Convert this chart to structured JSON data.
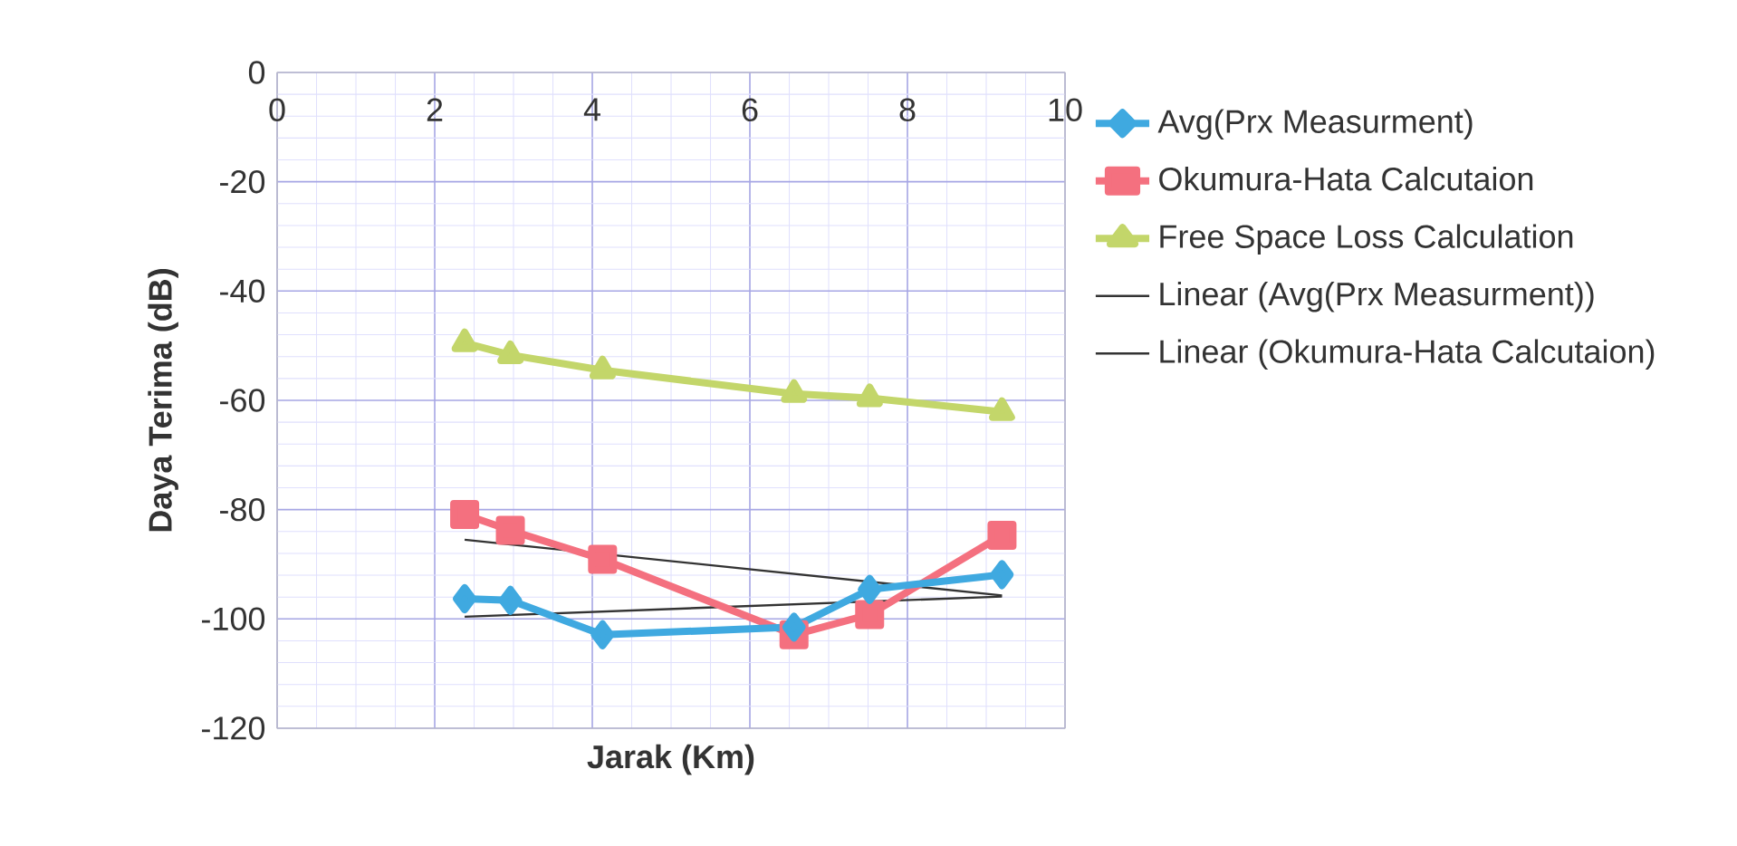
{
  "chart_data": {
    "type": "line",
    "xlabel": "Jarak (Km)",
    "ylabel": "Daya Terima (dB)",
    "xlim": [
      0,
      10
    ],
    "xticks": [
      0,
      2,
      4,
      6,
      8,
      10
    ],
    "ylim": [
      -120,
      0
    ],
    "yticks": [
      -120,
      -100,
      -80,
      -60,
      -40,
      -20,
      0
    ],
    "grid": true,
    "legend": "right",
    "series": [
      {
        "name": "Avg(Prx Measurment)",
        "color": "#3fa9e0",
        "marker": "diamond",
        "x": [
          2.38,
          2.96,
          4.13,
          6.56,
          7.52,
          9.2
        ],
        "values": [
          -96.3,
          -96.6,
          -102.9,
          -101.5,
          -94.6,
          -91.9
        ]
      },
      {
        "name": "Okumura-Hata Calcutaion",
        "color": "#f4707f",
        "marker": "square",
        "x": [
          2.38,
          2.96,
          4.13,
          6.56,
          7.52,
          9.2
        ],
        "values": [
          -80.9,
          -83.8,
          -89.1,
          -102.9,
          -99.2,
          -84.7
        ]
      },
      {
        "name": "Free Space Loss Calculation",
        "color": "#c3d66a",
        "marker": "triangle",
        "x": [
          2.38,
          2.96,
          4.13,
          6.56,
          7.52,
          9.2
        ],
        "values": [
          -49.5,
          -51.7,
          -54.5,
          -58.8,
          -59.6,
          -62.1
        ]
      },
      {
        "name": "Linear (Avg(Prx Measurment))",
        "color": "#333333",
        "marker": "none",
        "x": [
          2.38,
          9.2
        ],
        "values": [
          -99.6,
          -95.9
        ]
      },
      {
        "name": "Linear (Okumura-Hata Calcutaion)",
        "color": "#333333",
        "marker": "none",
        "x": [
          2.38,
          9.2
        ],
        "values": [
          -85.5,
          -95.7
        ]
      }
    ]
  }
}
